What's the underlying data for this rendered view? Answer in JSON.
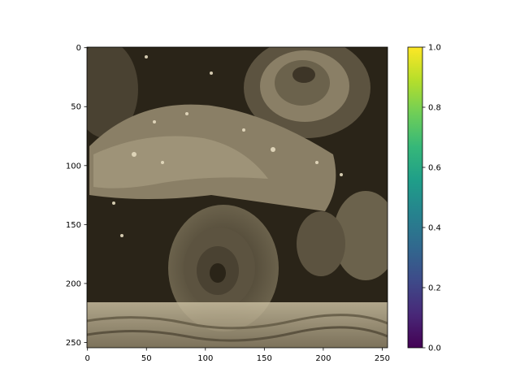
{
  "chart_data": {
    "type": "heatmap",
    "description": "",
    "x_ticks": [
      0,
      50,
      100,
      150,
      200,
      250
    ],
    "y_ticks": [
      0,
      50,
      100,
      150,
      200,
      250
    ],
    "xlim": [
      0,
      255
    ],
    "ylim": [
      255,
      0
    ],
    "colorbar": {
      "colormap": "viridis",
      "range": [
        0.0,
        1.0
      ],
      "ticks": [
        "0.0",
        "0.2",
        "0.4",
        "0.6",
        "0.8",
        "1.0"
      ]
    },
    "xlabel": "",
    "ylabel": "",
    "title": ""
  },
  "colors": {
    "sepia_dark": "#2a2418",
    "sepia_mid": "#7a6f58",
    "sepia_light": "#c9bea0",
    "viridis": [
      "#440154",
      "#482878",
      "#3e4a89",
      "#31688e",
      "#26828e",
      "#1f9e89",
      "#35b779",
      "#6ece58",
      "#b5de2b",
      "#fde725"
    ]
  }
}
